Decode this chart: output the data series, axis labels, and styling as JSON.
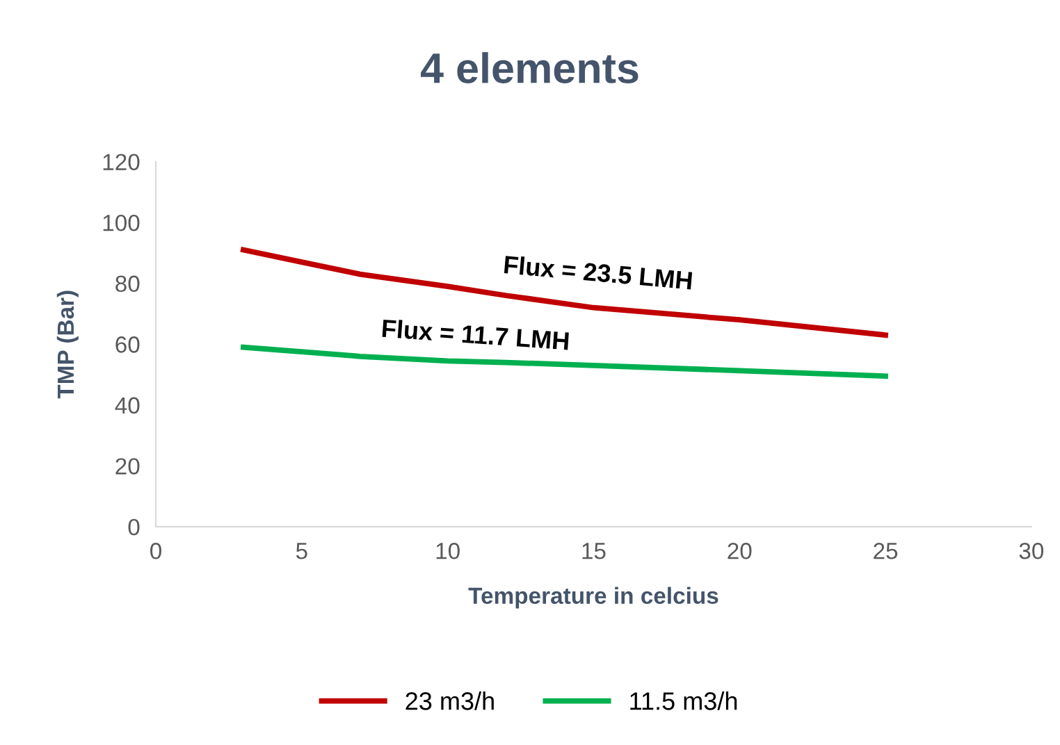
{
  "chart_data": {
    "type": "line",
    "title": "4 elements",
    "xlabel": "Temperature in celcius",
    "ylabel": "TMP (Bar)",
    "series": [
      {
        "name": "23 m3/h",
        "color": "#c00000",
        "x": [
          3,
          5,
          7,
          10,
          12,
          15,
          20,
          25
        ],
        "values": [
          91,
          87,
          83,
          79,
          76,
          72,
          68,
          63
        ]
      },
      {
        "name": "11.5 m3/h",
        "color": "#00b050",
        "x": [
          3,
          5,
          7,
          10,
          12,
          15,
          20,
          25
        ],
        "values": [
          59,
          57.5,
          56,
          54.5,
          54,
          53,
          51.3,
          49.5
        ]
      }
    ],
    "annotations": [
      "Flux = 23.5 LMH",
      "Flux = 11.7 LMH"
    ],
    "xlim": [
      0,
      30
    ],
    "xticks": [
      0,
      5,
      10,
      15,
      20,
      25,
      30
    ],
    "ylim": [
      0,
      120
    ],
    "yticks": [
      0,
      20,
      40,
      60,
      80,
      100,
      120
    ],
    "grid": false,
    "legend": "bottom",
    "marker": "none",
    "line_style": "solid"
  }
}
